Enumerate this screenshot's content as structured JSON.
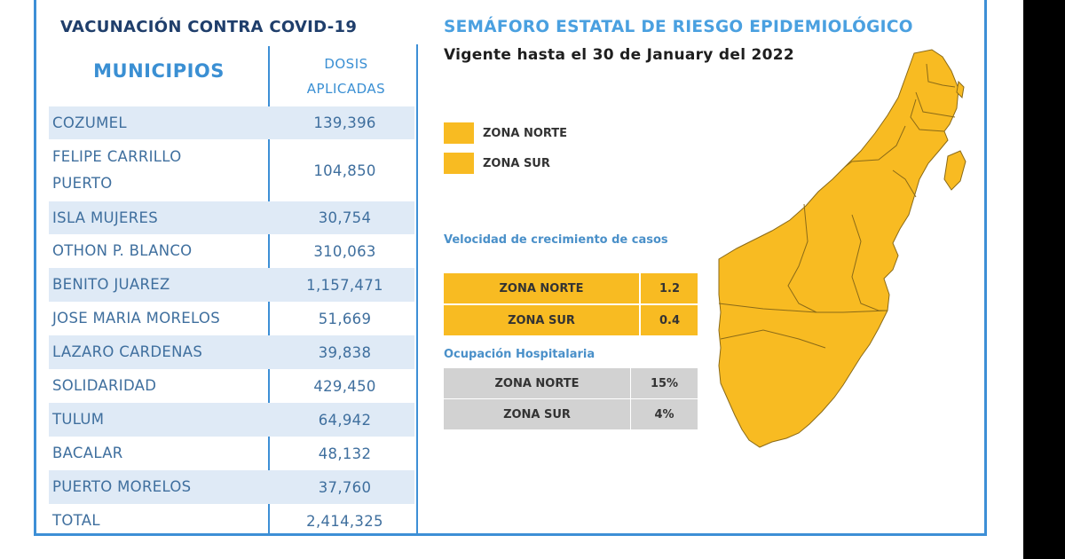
{
  "left": {
    "title": "VACUNACIÓN CONTRA COVID-19",
    "col_municipios": "MUNICIPIOS",
    "col_dosis_line1": "DOSIS",
    "col_dosis_line2": "APLICADAS",
    "rows": [
      {
        "municipio": "COZUMEL",
        "dosis": "139,396"
      },
      {
        "municipio": "FELIPE CARRILLO PUERTO",
        "dosis": "104,850"
      },
      {
        "municipio": "ISLA MUJERES",
        "dosis": "30,754"
      },
      {
        "municipio": "OTHON P. BLANCO",
        "dosis": "310,063"
      },
      {
        "municipio": "BENITO JUAREZ",
        "dosis": "1,157,471"
      },
      {
        "municipio": "JOSE MARIA MORELOS",
        "dosis": "51,669"
      },
      {
        "municipio": "LAZARO CARDENAS",
        "dosis": "39,838"
      },
      {
        "municipio": "SOLIDARIDAD",
        "dosis": "429,450"
      },
      {
        "municipio": "TULUM",
        "dosis": "64,942"
      },
      {
        "municipio": "BACALAR",
        "dosis": "48,132"
      },
      {
        "municipio": "PUERTO MORELOS",
        "dosis": "37,760"
      },
      {
        "municipio": "TOTAL",
        "dosis": "2,414,325"
      }
    ]
  },
  "right": {
    "title": "SEMÁFORO ESTATAL DE RIESGO EPIDEMIOLÓGICO",
    "vigente": "Vigente hasta el 30 de January del 2022",
    "legend": [
      {
        "label": "ZONA NORTE",
        "color": "#f8bb22"
      },
      {
        "label": "ZONA SUR",
        "color": "#f8bb22"
      }
    ],
    "velocidad_title": "Velocidad de crecimiento de casos",
    "velocidad": [
      {
        "zona": "ZONA NORTE",
        "valor": "1.2"
      },
      {
        "zona": "ZONA SUR",
        "valor": "0.4"
      }
    ],
    "ocupacion_title": "Ocupación Hospitalaria",
    "ocupacion": [
      {
        "zona": "ZONA NORTE",
        "valor": "15%"
      },
      {
        "zona": "ZONA SUR",
        "valor": "4%"
      }
    ]
  },
  "colors": {
    "accent_blue": "#3d8fd6",
    "risk_yellow": "#f8bb22",
    "row_shade": "#dfeaf6",
    "hosp_gray": "#d2d2d2"
  }
}
